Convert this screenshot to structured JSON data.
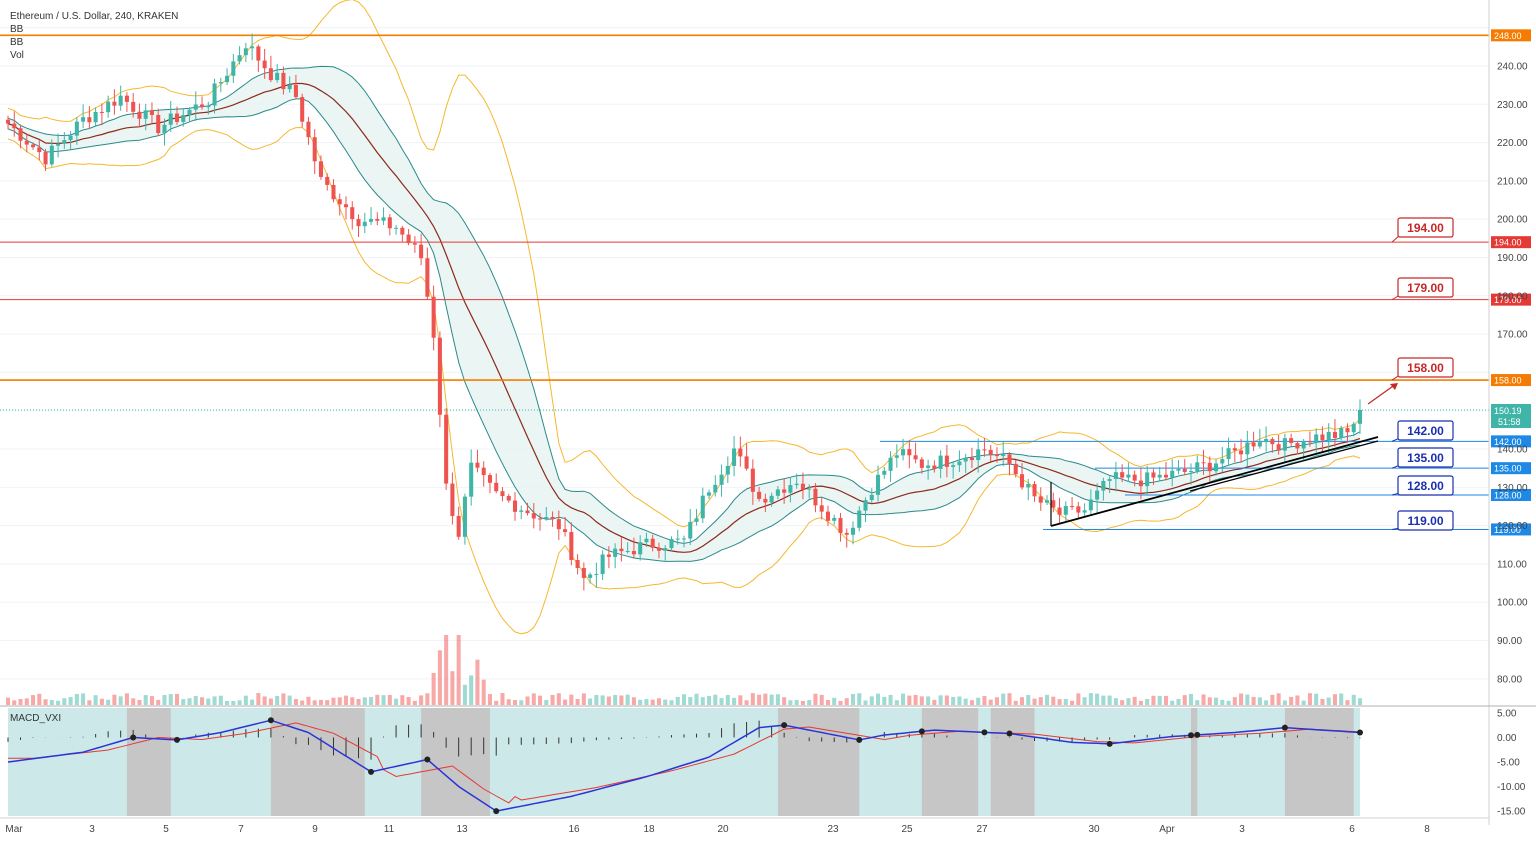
{
  "legend": {
    "title": "Ethereum / U.S. Dollar, 240, KRAKEN",
    "bb1": "BB",
    "bb2": "BB",
    "vol": "Vol",
    "macd": "MACD_VXI"
  },
  "colors": {
    "up": "#3fb5a8",
    "down": "#ef5350",
    "orange_line": "#f57c00",
    "red_line": "#e53935",
    "blue_line": "#1e88e5",
    "bb_mid": "#8b2a1a",
    "bb_inner": "#2a8a8a",
    "bb_outer": "#f5b82e",
    "macd_line": "#2a35d6",
    "signal_line": "#e53935",
    "macd_bg": "#cde8e8",
    "macd_gray": "#c6c6c6"
  },
  "chart_data": {
    "type": "candlestick",
    "title": "Ethereum / U.S. Dollar, 240, KRAKEN",
    "ylim": [
      75,
      252
    ],
    "price_ticks": [
      80,
      90,
      100,
      110,
      120,
      130,
      140,
      150,
      160,
      170,
      180,
      190,
      200,
      210,
      220,
      230,
      240,
      250
    ],
    "x_ticks": [
      "Mar",
      "3",
      "5",
      "7",
      "9",
      "11",
      "13",
      "16",
      "18",
      "20",
      "23",
      "25",
      "27",
      "30",
      "Apr",
      "3",
      "6",
      "8"
    ],
    "horizontal_levels": [
      {
        "value": 248,
        "label": "248.00",
        "color": "orange"
      },
      {
        "value": 194,
        "label": "194.00",
        "color": "red"
      },
      {
        "value": 179,
        "label": "179.00",
        "color": "red"
      },
      {
        "value": 158,
        "label": "158.00",
        "color": "orange"
      },
      {
        "value": 142,
        "label": "142.00",
        "color": "blue"
      },
      {
        "value": 135,
        "label": "135.00",
        "color": "blue"
      },
      {
        "value": 128,
        "label": "128.00",
        "color": "blue"
      },
      {
        "value": 119,
        "label": "119.00",
        "color": "blue"
      }
    ],
    "target_boxes": [
      {
        "value": "194.00",
        "color": "red"
      },
      {
        "value": "179.00",
        "color": "red"
      },
      {
        "value": "158.00",
        "color": "red"
      },
      {
        "value": "142.00",
        "color": "blue"
      },
      {
        "value": "135.00",
        "color": "blue"
      },
      {
        "value": "128.00",
        "color": "blue"
      },
      {
        "value": "119.00",
        "color": "blue"
      }
    ],
    "last_price": "150.19",
    "countdown": "51:58",
    "close_anchors": [
      {
        "t": 0,
        "v": 225
      },
      {
        "t": 6,
        "v": 216
      },
      {
        "t": 12,
        "v": 226
      },
      {
        "t": 18,
        "v": 232
      },
      {
        "t": 24,
        "v": 224
      },
      {
        "t": 32,
        "v": 231
      },
      {
        "t": 38,
        "v": 246
      },
      {
        "t": 42,
        "v": 238
      },
      {
        "t": 46,
        "v": 232
      },
      {
        "t": 50,
        "v": 210
      },
      {
        "t": 56,
        "v": 200
      },
      {
        "t": 62,
        "v": 198
      },
      {
        "t": 66,
        "v": 190
      },
      {
        "t": 68,
        "v": 170
      },
      {
        "t": 70,
        "v": 130
      },
      {
        "t": 72,
        "v": 118
      },
      {
        "t": 74,
        "v": 135
      },
      {
        "t": 78,
        "v": 128
      },
      {
        "t": 84,
        "v": 123
      },
      {
        "t": 88,
        "v": 120
      },
      {
        "t": 92,
        "v": 106
      },
      {
        "t": 96,
        "v": 112
      },
      {
        "t": 102,
        "v": 115
      },
      {
        "t": 108,
        "v": 116
      },
      {
        "t": 112,
        "v": 130
      },
      {
        "t": 116,
        "v": 140
      },
      {
        "t": 120,
        "v": 127
      },
      {
        "t": 126,
        "v": 132
      },
      {
        "t": 130,
        "v": 125
      },
      {
        "t": 134,
        "v": 118
      },
      {
        "t": 138,
        "v": 130
      },
      {
        "t": 142,
        "v": 139
      },
      {
        "t": 146,
        "v": 136
      },
      {
        "t": 150,
        "v": 137
      },
      {
        "t": 156,
        "v": 140
      },
      {
        "t": 160,
        "v": 136
      },
      {
        "t": 164,
        "v": 127
      },
      {
        "t": 168,
        "v": 123
      },
      {
        "t": 172,
        "v": 124
      },
      {
        "t": 176,
        "v": 132
      },
      {
        "t": 182,
        "v": 132
      },
      {
        "t": 188,
        "v": 134
      },
      {
        "t": 192,
        "v": 136
      },
      {
        "t": 196,
        "v": 139
      },
      {
        "t": 200,
        "v": 143
      },
      {
        "t": 204,
        "v": 141
      },
      {
        "t": 208,
        "v": 143
      },
      {
        "t": 214,
        "v": 144
      },
      {
        "t": 216,
        "v": 150
      }
    ],
    "macd_ylim": [
      -16,
      6
    ],
    "macd_ticks": [
      5,
      0,
      -5,
      -10,
      -15
    ],
    "macd_anchors": [
      {
        "t": 0,
        "v": -5
      },
      {
        "t": 12,
        "v": -3
      },
      {
        "t": 20,
        "v": 0
      },
      {
        "t": 27,
        "v": -0.5
      },
      {
        "t": 34,
        "v": 1
      },
      {
        "t": 42,
        "v": 3.5
      },
      {
        "t": 48,
        "v": 1
      },
      {
        "t": 58,
        "v": -7
      },
      {
        "t": 67,
        "v": -4.5
      },
      {
        "t": 72,
        "v": -10
      },
      {
        "t": 78,
        "v": -15
      },
      {
        "t": 90,
        "v": -12
      },
      {
        "t": 102,
        "v": -8
      },
      {
        "t": 112,
        "v": -4
      },
      {
        "t": 120,
        "v": 2
      },
      {
        "t": 124,
        "v": 2.5
      },
      {
        "t": 136,
        "v": -0.5
      },
      {
        "t": 140,
        "v": 0.5
      },
      {
        "t": 148,
        "v": 1.5
      },
      {
        "t": 160,
        "v": 0.8
      },
      {
        "t": 170,
        "v": -1
      },
      {
        "t": 176,
        "v": -1.3
      },
      {
        "t": 186,
        "v": 0.2
      },
      {
        "t": 196,
        "v": 1
      },
      {
        "t": 204,
        "v": 2
      },
      {
        "t": 216,
        "v": 1
      }
    ],
    "macd_marker_t": [
      20,
      27,
      42,
      58,
      67,
      78,
      124,
      136,
      146,
      156,
      160,
      176,
      189,
      190,
      204,
      216
    ]
  }
}
